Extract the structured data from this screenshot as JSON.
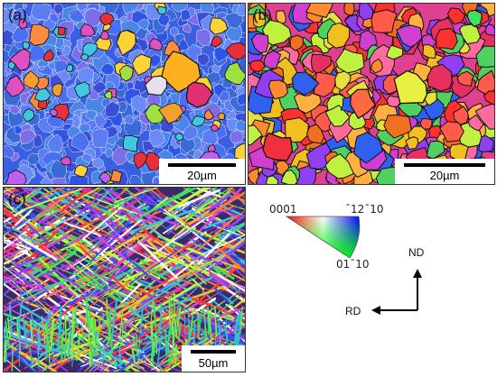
{
  "panels": [
    {
      "label": "(a)",
      "scale": "20µm"
    },
    {
      "label": "(b)",
      "scale": "20µm"
    },
    {
      "label": "(c)",
      "scale": "50µm"
    }
  ],
  "ipf_legend": {
    "corner_0001": "0001",
    "corner_1210": "¯12¯10",
    "corner_0110": "01¯10"
  },
  "axes": {
    "nd": "ND",
    "rd": "RD"
  }
}
